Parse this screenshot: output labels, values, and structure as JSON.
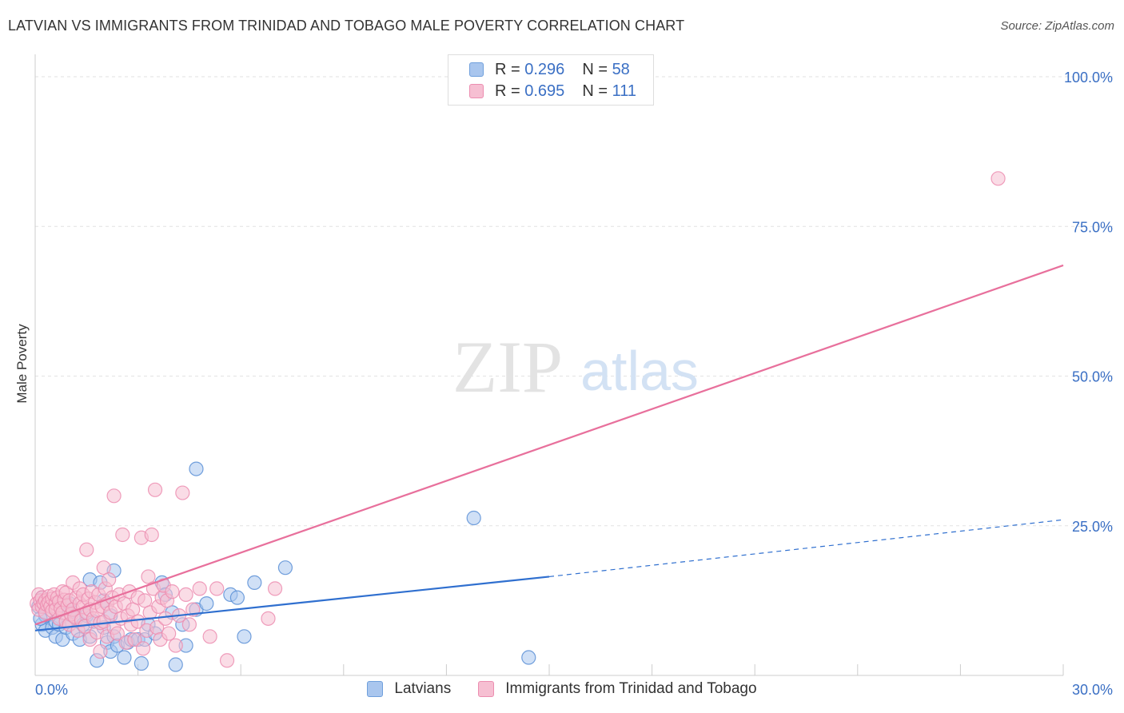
{
  "header": {
    "title": "LATVIAN VS IMMIGRANTS FROM TRINIDAD AND TOBAGO MALE POVERTY CORRELATION CHART",
    "source": "Source: ZipAtlas.com"
  },
  "watermark": {
    "zip": "ZIP",
    "atlas": "atlas"
  },
  "legend_top": [
    {
      "r_label": "R =",
      "r_value": "0.296",
      "n_label": "N =",
      "n_value": "58",
      "fill": "#a9c6ee",
      "stroke": "#6f9fdc"
    },
    {
      "r_label": "R =",
      "r_value": "0.695",
      "n_label": "N =",
      "n_value": "111",
      "fill": "#f6bfd2",
      "stroke": "#ec8db0"
    }
  ],
  "chart_data": {
    "type": "scatter",
    "title": "LATVIAN VS IMMIGRANTS FROM TRINIDAD AND TOBAGO MALE POVERTY CORRELATION CHART",
    "xlabel": "",
    "ylabel": "Male Poverty",
    "xlim": [
      0,
      30
    ],
    "ylim": [
      0,
      100
    ],
    "x_tick_labels": [
      {
        "value": 0,
        "label": "0.0%"
      },
      {
        "value": 30,
        "label": "30.0%"
      }
    ],
    "y_tick_labels": [
      {
        "value": 25,
        "label": "25.0%"
      },
      {
        "value": 50,
        "label": "50.0%"
      },
      {
        "value": 75,
        "label": "75.0%"
      },
      {
        "value": 100,
        "label": "100.0%"
      }
    ],
    "grid": true,
    "legend_position": "bottom",
    "series": [
      {
        "name": "Latvians",
        "color": "#5b8fd6",
        "fill": "#a9c6ee",
        "trend": {
          "x0": 0,
          "y0": 7.5,
          "x1": 15,
          "y1": 16.5,
          "dashed_to_x": 30,
          "dashed_to_y": 26.0,
          "color": "#2f6fcf"
        },
        "points": [
          [
            0.1,
            11.5
          ],
          [
            0.2,
            13.0
          ],
          [
            0.2,
            8.5
          ],
          [
            0.3,
            10.0
          ],
          [
            0.3,
            7.5
          ],
          [
            0.4,
            12.0
          ],
          [
            0.5,
            8.0
          ],
          [
            0.6,
            9.0
          ],
          [
            0.6,
            6.5
          ],
          [
            0.7,
            8.5
          ],
          [
            0.8,
            11.0
          ],
          [
            0.8,
            6.0
          ],
          [
            0.9,
            8.0
          ],
          [
            1.0,
            10.5
          ],
          [
            1.0,
            12.0
          ],
          [
            1.1,
            7.0
          ],
          [
            1.2,
            9.5
          ],
          [
            1.3,
            6.0
          ],
          [
            1.4,
            8.5
          ],
          [
            1.5,
            10.0
          ],
          [
            1.6,
            6.5
          ],
          [
            1.6,
            16.0
          ],
          [
            1.7,
            9.0
          ],
          [
            1.8,
            2.5
          ],
          [
            1.9,
            15.5
          ],
          [
            2.0,
            8.0
          ],
          [
            2.0,
            12.5
          ],
          [
            2.1,
            5.5
          ],
          [
            2.2,
            4.0
          ],
          [
            2.2,
            10.0
          ],
          [
            2.3,
            6.5
          ],
          [
            2.4,
            5.0
          ],
          [
            2.3,
            17.5
          ],
          [
            2.6,
            3.0
          ],
          [
            2.7,
            5.5
          ],
          [
            2.8,
            6.0
          ],
          [
            3.0,
            6.0
          ],
          [
            3.1,
            2.0
          ],
          [
            3.2,
            6.0
          ],
          [
            3.3,
            8.5
          ],
          [
            3.5,
            7.0
          ],
          [
            3.7,
            15.5
          ],
          [
            3.8,
            13.5
          ],
          [
            4.0,
            10.5
          ],
          [
            4.1,
            1.8
          ],
          [
            4.3,
            8.5
          ],
          [
            4.4,
            5.0
          ],
          [
            4.7,
            11.0
          ],
          [
            4.7,
            34.5
          ],
          [
            5.0,
            12.0
          ],
          [
            5.7,
            13.5
          ],
          [
            5.9,
            13.0
          ],
          [
            6.1,
            6.5
          ],
          [
            6.4,
            15.5
          ],
          [
            7.3,
            18.0
          ],
          [
            12.8,
            26.3
          ],
          [
            14.4,
            3.0
          ],
          [
            0.15,
            9.5
          ]
        ]
      },
      {
        "name": "Immigrants from Trinidad and Tobago",
        "color": "#ec8db0",
        "fill": "#f6bfd2",
        "trend": {
          "x0": 0,
          "y0": 8.5,
          "x1": 30,
          "y1": 68.5,
          "color": "#e8709c"
        },
        "points": [
          [
            0.05,
            12.0
          ],
          [
            0.1,
            11.0
          ],
          [
            0.1,
            13.5
          ],
          [
            0.15,
            12.5
          ],
          [
            0.2,
            11.5
          ],
          [
            0.2,
            13.0
          ],
          [
            0.25,
            12.0
          ],
          [
            0.3,
            12.5
          ],
          [
            0.3,
            10.5
          ],
          [
            0.35,
            11.8
          ],
          [
            0.4,
            13.2
          ],
          [
            0.4,
            12.2
          ],
          [
            0.45,
            11.5
          ],
          [
            0.5,
            12.8
          ],
          [
            0.5,
            10.8
          ],
          [
            0.55,
            13.5
          ],
          [
            0.6,
            12.0
          ],
          [
            0.6,
            11.0
          ],
          [
            0.65,
            13.0
          ],
          [
            0.7,
            12.3
          ],
          [
            0.7,
            9.5
          ],
          [
            0.75,
            11.2
          ],
          [
            0.8,
            14.0
          ],
          [
            0.8,
            10.5
          ],
          [
            0.85,
            12.6
          ],
          [
            0.9,
            9.0
          ],
          [
            0.9,
            13.8
          ],
          [
            0.95,
            11.7
          ],
          [
            1.0,
            12.5
          ],
          [
            1.0,
            8.5
          ],
          [
            1.05,
            10.2
          ],
          [
            1.1,
            15.5
          ],
          [
            1.1,
            11.0
          ],
          [
            1.15,
            9.8
          ],
          [
            1.2,
            13.0
          ],
          [
            1.25,
            7.5
          ],
          [
            1.3,
            12.0
          ],
          [
            1.3,
            14.5
          ],
          [
            1.35,
            9.2
          ],
          [
            1.4,
            11.5
          ],
          [
            1.4,
            13.5
          ],
          [
            1.45,
            8.2
          ],
          [
            1.5,
            10.5
          ],
          [
            1.5,
            21.0
          ],
          [
            1.55,
            12.8
          ],
          [
            1.6,
            6.0
          ],
          [
            1.6,
            11.0
          ],
          [
            1.65,
            14.0
          ],
          [
            1.7,
            9.5
          ],
          [
            1.75,
            12.2
          ],
          [
            1.8,
            7.2
          ],
          [
            1.8,
            10.8
          ],
          [
            1.85,
            13.5
          ],
          [
            1.9,
            8.8
          ],
          [
            1.9,
            4.0
          ],
          [
            1.95,
            11.5
          ],
          [
            2.0,
            18.0
          ],
          [
            2.0,
            9.0
          ],
          [
            2.05,
            14.5
          ],
          [
            2.1,
            12.0
          ],
          [
            2.1,
            6.5
          ],
          [
            2.15,
            16.0
          ],
          [
            2.2,
            10.5
          ],
          [
            2.25,
            13.0
          ],
          [
            2.3,
            8.0
          ],
          [
            2.3,
            30.0
          ],
          [
            2.35,
            11.5
          ],
          [
            2.4,
            7.0
          ],
          [
            2.45,
            13.5
          ],
          [
            2.5,
            9.5
          ],
          [
            2.55,
            23.5
          ],
          [
            2.6,
            12.0
          ],
          [
            2.65,
            5.5
          ],
          [
            2.7,
            10.0
          ],
          [
            2.75,
            14.0
          ],
          [
            2.8,
            8.5
          ],
          [
            2.85,
            11.0
          ],
          [
            2.9,
            6.0
          ],
          [
            3.0,
            13.0
          ],
          [
            3.0,
            9.0
          ],
          [
            3.1,
            23.0
          ],
          [
            3.15,
            4.5
          ],
          [
            3.2,
            12.5
          ],
          [
            3.25,
            7.5
          ],
          [
            3.3,
            16.5
          ],
          [
            3.35,
            10.5
          ],
          [
            3.4,
            23.5
          ],
          [
            3.45,
            14.5
          ],
          [
            3.5,
            31.0
          ],
          [
            3.55,
            8.0
          ],
          [
            3.6,
            11.5
          ],
          [
            3.65,
            6.0
          ],
          [
            3.7,
            13.0
          ],
          [
            3.75,
            15.0
          ],
          [
            3.8,
            9.5
          ],
          [
            3.85,
            12.5
          ],
          [
            3.9,
            7.0
          ],
          [
            4.0,
            14.0
          ],
          [
            4.1,
            5.0
          ],
          [
            4.2,
            10.0
          ],
          [
            4.3,
            30.5
          ],
          [
            4.4,
            13.5
          ],
          [
            4.5,
            8.5
          ],
          [
            4.6,
            11.0
          ],
          [
            4.8,
            14.5
          ],
          [
            5.1,
            6.5
          ],
          [
            5.3,
            14.5
          ],
          [
            5.6,
            2.5
          ],
          [
            6.8,
            9.5
          ],
          [
            7.0,
            14.5
          ],
          [
            28.1,
            83.0
          ]
        ]
      }
    ]
  }
}
